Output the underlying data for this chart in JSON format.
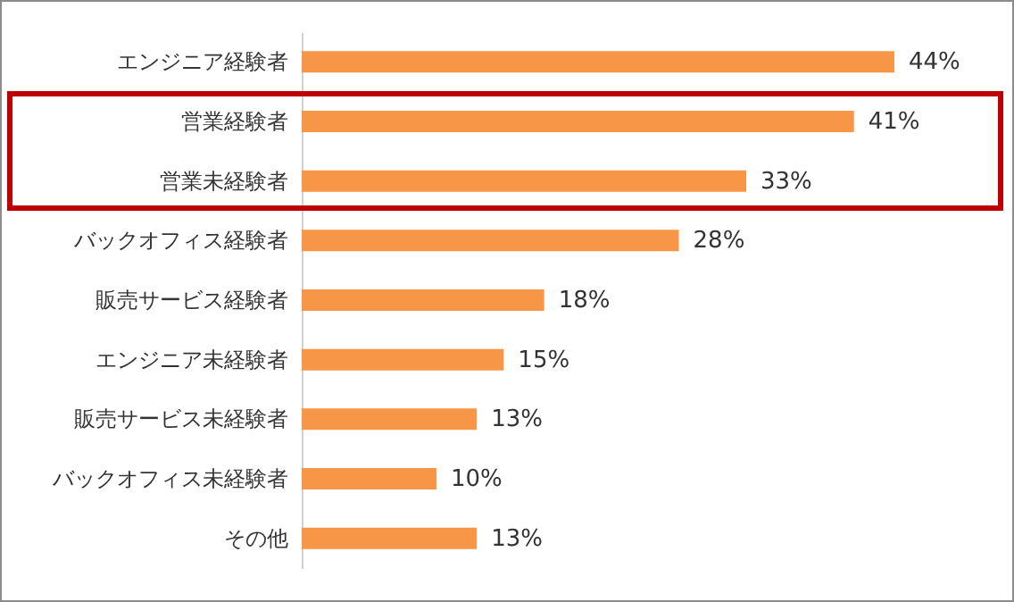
{
  "chart_data": {
    "type": "bar",
    "orientation": "horizontal",
    "categories": [
      "エンジニア経験者",
      "営業経験者",
      "営業未経験者",
      "バックオフィス経験者",
      "販売サービス経験者",
      "エンジニア未経験者",
      "販売サービス未経験者",
      "バックオフィス未経験者",
      "その他"
    ],
    "values": [
      44,
      41,
      33,
      28,
      18,
      15,
      13,
      10,
      13
    ],
    "value_labels": [
      "44%",
      "41%",
      "33%",
      "28%",
      "18%",
      "15%",
      "13%",
      "10%",
      "13%"
    ],
    "color": "#f79646"
  }
}
